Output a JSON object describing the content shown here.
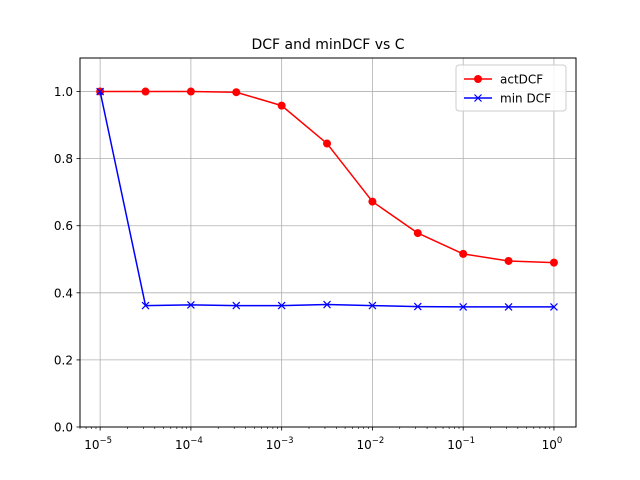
{
  "chart_data": {
    "type": "line",
    "title": "DCF and minDCF vs C",
    "xlabel": "",
    "ylabel": "",
    "x_scale": "log",
    "xlim": [
      6e-06,
      1.75
    ],
    "ylim": [
      0,
      1.1
    ],
    "grid": true,
    "legend_position": "top-right",
    "x_ticks": [
      {
        "value": 1e-05,
        "base": "10",
        "exp": "−5"
      },
      {
        "value": 0.0001,
        "base": "10",
        "exp": "−4"
      },
      {
        "value": 0.001,
        "base": "10",
        "exp": "−3"
      },
      {
        "value": 0.01,
        "base": "10",
        "exp": "−2"
      },
      {
        "value": 0.1,
        "base": "10",
        "exp": "−1"
      },
      {
        "value": 1,
        "base": "10",
        "exp": "0"
      }
    ],
    "y_ticks": [
      {
        "value": 0.0,
        "label": "0.0"
      },
      {
        "value": 0.2,
        "label": "0.2"
      },
      {
        "value": 0.4,
        "label": "0.4"
      },
      {
        "value": 0.6,
        "label": "0.6"
      },
      {
        "value": 0.8,
        "label": "0.8"
      },
      {
        "value": 1.0,
        "label": "1.0"
      }
    ],
    "x": [
      1e-05,
      3.162e-05,
      0.0001,
      0.0003162,
      0.001,
      0.003162,
      0.01,
      0.03162,
      0.1,
      0.3162,
      1
    ],
    "series": [
      {
        "name": "actDCF",
        "color": "#ff0000",
        "marker": "circle",
        "values": [
          1.0,
          1.0,
          1.0,
          0.998,
          0.958,
          0.845,
          0.672,
          0.578,
          0.516,
          0.495,
          0.49
        ]
      },
      {
        "name": "min DCF",
        "color": "#0000ff",
        "marker": "x",
        "values": [
          1.0,
          0.362,
          0.364,
          0.362,
          0.362,
          0.365,
          0.362,
          0.359,
          0.358,
          0.358,
          0.358
        ]
      }
    ]
  }
}
